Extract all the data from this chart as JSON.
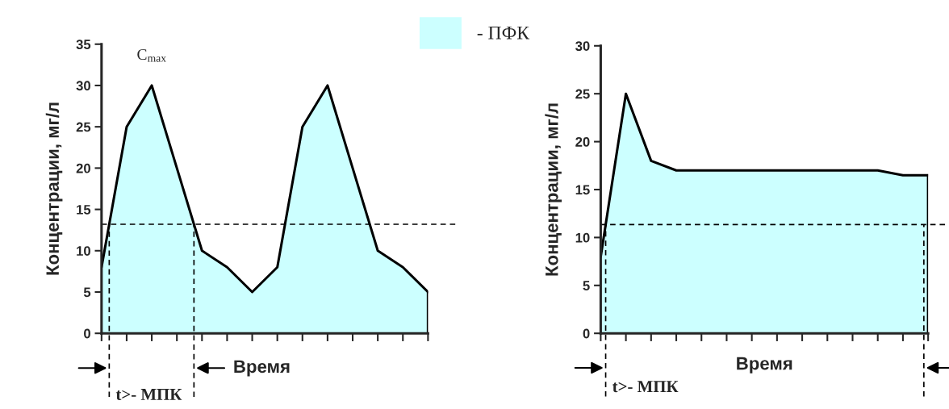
{
  "chart_data": [
    {
      "type": "area",
      "categories": [
        null,
        null,
        null,
        null,
        null,
        null,
        null,
        null,
        null,
        null,
        null,
        null,
        null,
        null
      ],
      "series": [
        {
          "name": "- ПФК",
          "color": "#ccffff",
          "values": [
            8,
            25,
            30,
            20,
            10,
            8,
            5,
            8,
            25,
            30,
            20,
            10,
            8,
            5
          ]
        }
      ],
      "ylim": [
        0,
        35
      ],
      "yticks": [
        0,
        5,
        10,
        15,
        20,
        25,
        30,
        35
      ],
      "ylabel": "Концентрации, мг/л",
      "xlabel": "Время",
      "legend": "top",
      "ref_lines": [
        {
          "axis": "y",
          "value": 13.2,
          "line_style": "dashed"
        }
      ],
      "annotations": [
        "C$_{max}$",
        "t>- МПК"
      ]
    },
    {
      "type": "area",
      "categories": [
        null,
        null,
        null,
        null,
        null,
        null,
        null,
        null,
        null,
        null,
        null,
        null,
        null,
        null
      ],
      "series": [
        {
          "color": "#ccffff",
          "values": [
            8,
            25,
            18,
            17,
            17,
            17,
            17,
            17,
            17,
            17,
            17,
            17,
            16.5,
            16.5
          ]
        }
      ],
      "ylim": [
        0,
        30
      ],
      "yticks": [
        0,
        5,
        10,
        15,
        20,
        25,
        30
      ],
      "ylabel": "Концентрации, мг/л",
      "xlabel": "Время",
      "ref_lines": [
        {
          "axis": "y",
          "value": 11.35,
          "line_style": "dashed"
        }
      ],
      "annotations": [
        "t>- МПК"
      ]
    }
  ]
}
